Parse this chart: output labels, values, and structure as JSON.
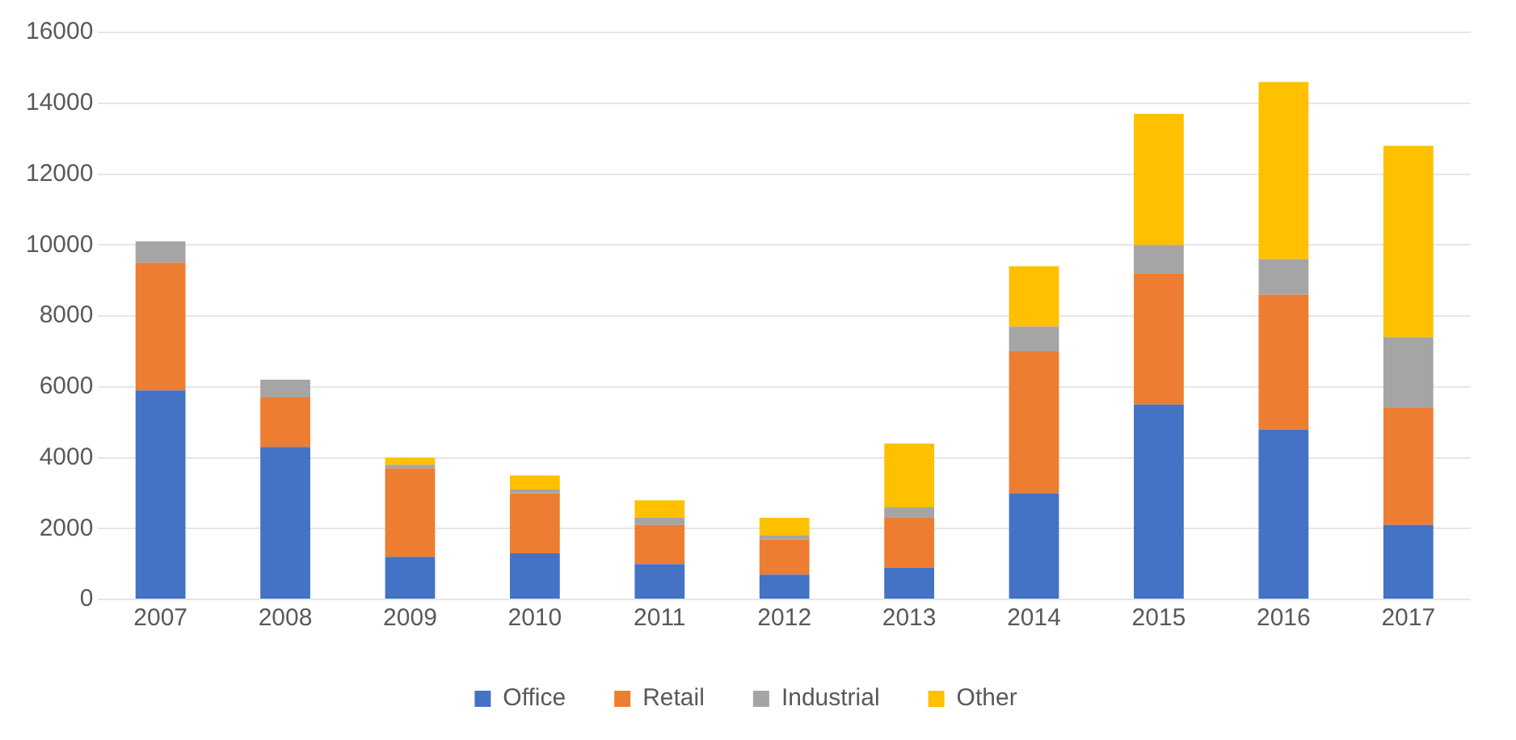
{
  "chart_data": {
    "type": "bar",
    "stacked": true,
    "categories": [
      "2007",
      "2008",
      "2009",
      "2010",
      "2011",
      "2012",
      "2013",
      "2014",
      "2015",
      "2016",
      "2017"
    ],
    "series": [
      {
        "name": "Office",
        "color": "#4472c4",
        "values": [
          5900,
          4300,
          1200,
          1300,
          1000,
          700,
          900,
          3000,
          5500,
          4800,
          2100
        ]
      },
      {
        "name": "Retail",
        "color": "#ed7d31",
        "values": [
          3600,
          1400,
          2500,
          1700,
          1100,
          1000,
          1400,
          4000,
          3700,
          3800,
          3300
        ]
      },
      {
        "name": "Industrial",
        "color": "#a5a5a5",
        "values": [
          600,
          500,
          100,
          100,
          200,
          100,
          300,
          700,
          800,
          1000,
          2000
        ]
      },
      {
        "name": "Other",
        "color": "#ffc000",
        "values": [
          0,
          0,
          200,
          400,
          500,
          500,
          1800,
          1700,
          3700,
          5000,
          5400
        ]
      }
    ],
    "ylim": [
      0,
      16000
    ],
    "yticks": [
      0,
      2000,
      4000,
      6000,
      8000,
      10000,
      12000,
      14000,
      16000
    ],
    "grid": "y",
    "legend": "bottom"
  }
}
